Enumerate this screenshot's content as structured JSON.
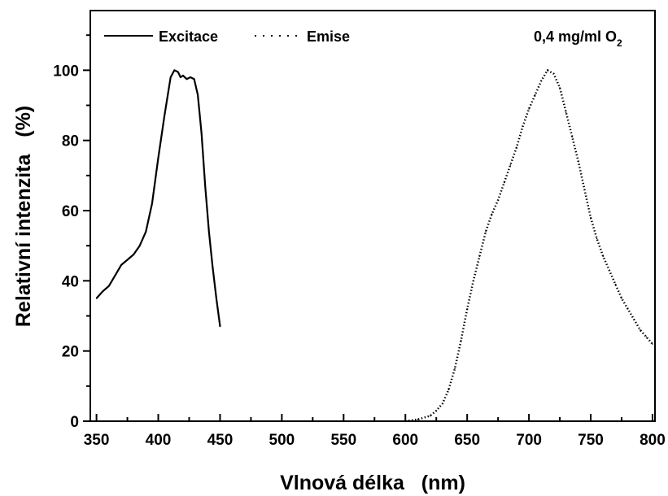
{
  "chart_data": {
    "type": "line",
    "title": "",
    "xlabel": "Vlnová délka   (nm)",
    "ylabel": "Relativní intenzita   (%)",
    "xlim": [
      345,
      802
    ],
    "ylim": [
      0,
      117
    ],
    "xticks": [
      350,
      400,
      450,
      500,
      550,
      600,
      650,
      700,
      750,
      800
    ],
    "yticks": [
      0,
      20,
      40,
      60,
      80,
      100
    ],
    "grid": false,
    "legend_position": "top-left",
    "annotation": {
      "text": "0,4 mg/ml O",
      "subscript": "2",
      "position": "top-right"
    },
    "series": [
      {
        "name": "Excitace",
        "style": "solid",
        "color": "#000000",
        "x": [
          350,
          355,
          360,
          365,
          370,
          375,
          380,
          385,
          390,
          395,
          400,
          405,
          410,
          413,
          416,
          418,
          420,
          423,
          426,
          429,
          432,
          435,
          438,
          441,
          444,
          447,
          450
        ],
        "y": [
          35,
          37,
          38.5,
          41.5,
          44.5,
          46,
          47.5,
          50,
          54,
          62,
          75,
          87,
          98,
          100,
          99.5,
          98,
          98.5,
          97.5,
          98,
          97.5,
          93,
          82,
          67,
          54,
          44,
          35,
          27
        ]
      },
      {
        "name": "Emise",
        "style": "dotted",
        "color": "#000000",
        "x": [
          600,
          610,
          620,
          625,
          630,
          635,
          640,
          645,
          650,
          655,
          660,
          665,
          670,
          675,
          680,
          685,
          690,
          695,
          700,
          705,
          710,
          715,
          720,
          725,
          730,
          735,
          740,
          745,
          750,
          755,
          760,
          765,
          770,
          775,
          780,
          785,
          790,
          795,
          800
        ],
        "y": [
          0,
          0.5,
          1.5,
          3,
          5,
          9,
          15,
          23,
          32,
          40,
          47,
          54,
          59,
          63,
          68,
          73,
          78,
          84,
          89,
          93,
          97,
          100,
          99,
          95,
          88,
          81,
          74,
          66,
          58,
          52,
          47,
          43,
          39,
          35,
          32,
          29,
          26,
          24,
          22
        ]
      }
    ]
  }
}
